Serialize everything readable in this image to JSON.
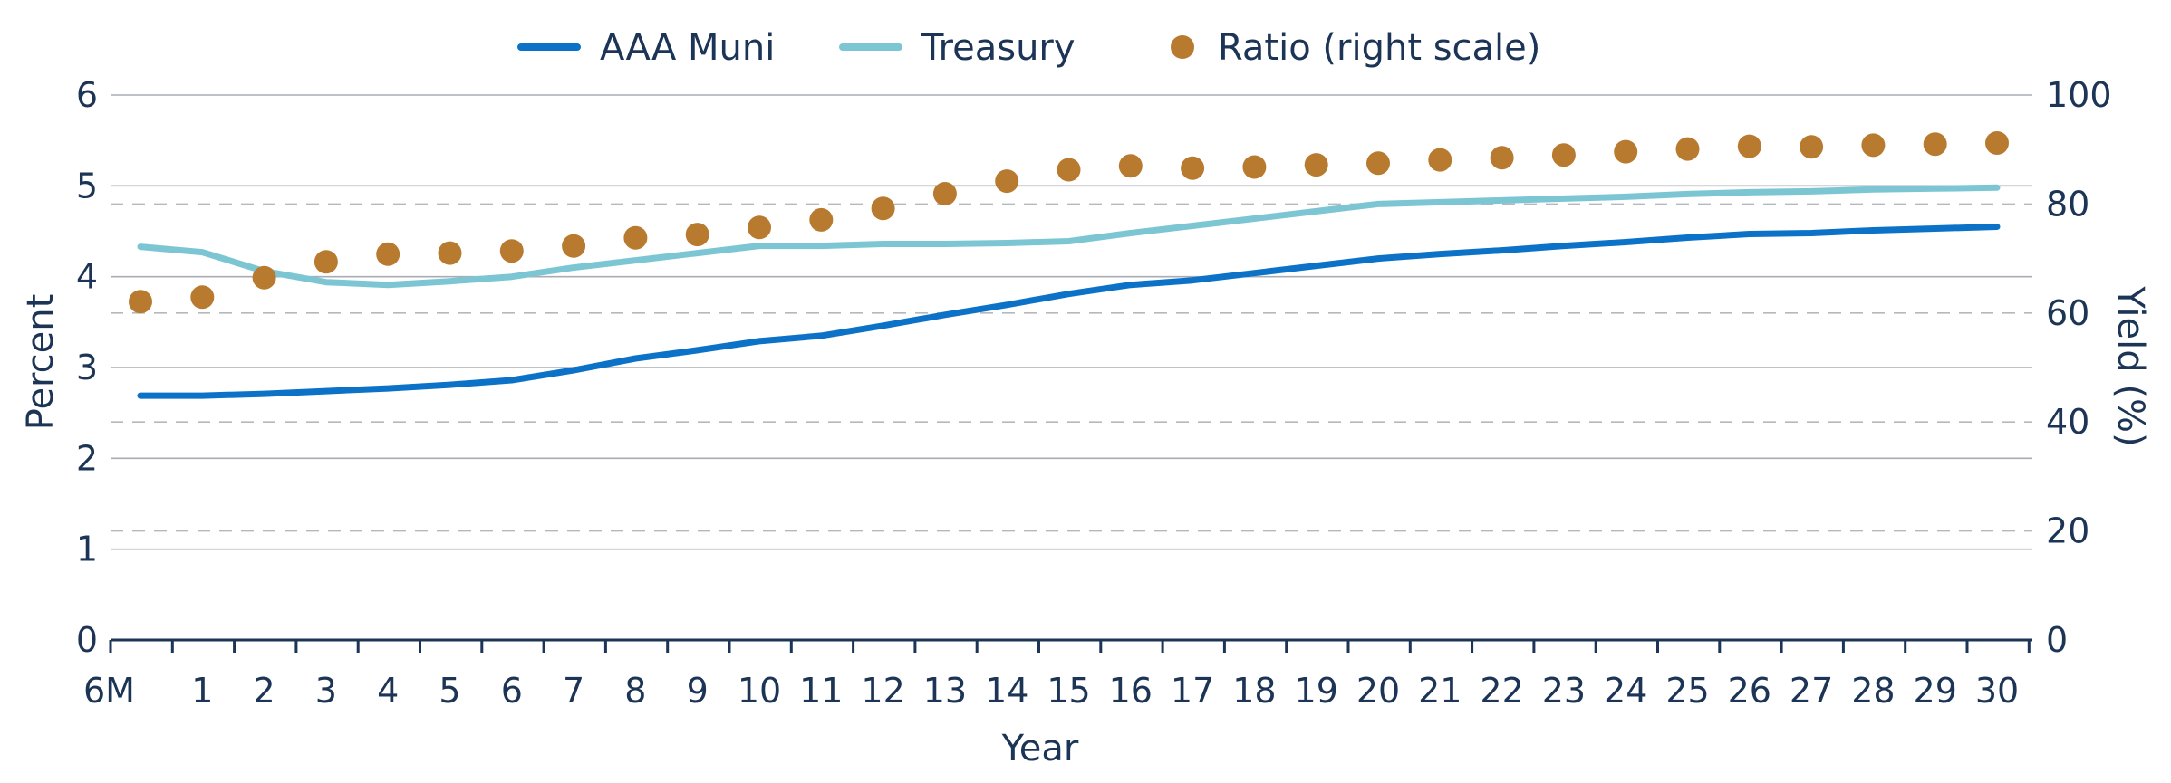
{
  "chart_data": {
    "type": "line",
    "title": "",
    "xlabel": "Year",
    "ylabel": "Percent",
    "y2label": "Yield (%)",
    "categories": [
      "6M",
      "1",
      "2",
      "3",
      "4",
      "5",
      "6",
      "7",
      "8",
      "9",
      "10",
      "11",
      "12",
      "13",
      "14",
      "15",
      "16",
      "17",
      "18",
      "19",
      "20",
      "21",
      "22",
      "23",
      "24",
      "25",
      "26",
      "27",
      "28",
      "29",
      "30"
    ],
    "ylim": [
      0,
      6
    ],
    "yticks": [
      "0",
      "1",
      "2",
      "3",
      "4",
      "5",
      "6"
    ],
    "y2lim": [
      0,
      100
    ],
    "y2ticks": [
      "0",
      "20",
      "40",
      "60",
      "80",
      "100"
    ],
    "grid": true,
    "legend_position": "top-center",
    "series": [
      {
        "name": "AAA Muni",
        "axis": "left",
        "style": "line",
        "color": "#0b72c7",
        "values": [
          2.69,
          2.69,
          2.71,
          2.74,
          2.77,
          2.81,
          2.86,
          2.97,
          3.1,
          3.19,
          3.29,
          3.35,
          3.46,
          3.58,
          3.69,
          3.81,
          3.91,
          3.96,
          4.04,
          4.12,
          4.2,
          4.25,
          4.29,
          4.34,
          4.38,
          4.43,
          4.47,
          4.48,
          4.51,
          4.53,
          4.55
        ]
      },
      {
        "name": "Treasury",
        "axis": "left",
        "style": "line",
        "color": "#7cc6d4",
        "values": [
          4.33,
          4.27,
          4.06,
          3.94,
          3.91,
          3.95,
          4.0,
          4.1,
          4.18,
          4.26,
          4.34,
          4.34,
          4.36,
          4.36,
          4.37,
          4.39,
          4.48,
          4.56,
          4.64,
          4.72,
          4.8,
          4.82,
          4.84,
          4.86,
          4.88,
          4.91,
          4.93,
          4.94,
          4.96,
          4.97,
          4.98
        ]
      },
      {
        "name": "Ratio (right scale)",
        "axis": "right",
        "style": "scatter",
        "color": "#b87a2e",
        "values": [
          62.1,
          62.9,
          66.5,
          69.4,
          70.8,
          71.0,
          71.4,
          72.3,
          73.8,
          74.4,
          75.7,
          77.1,
          79.2,
          81.9,
          84.2,
          86.3,
          87.0,
          86.6,
          86.8,
          87.2,
          87.5,
          88.1,
          88.5,
          89.0,
          89.6,
          90.1,
          90.6,
          90.5,
          90.8,
          91.0,
          91.2
        ]
      }
    ]
  }
}
